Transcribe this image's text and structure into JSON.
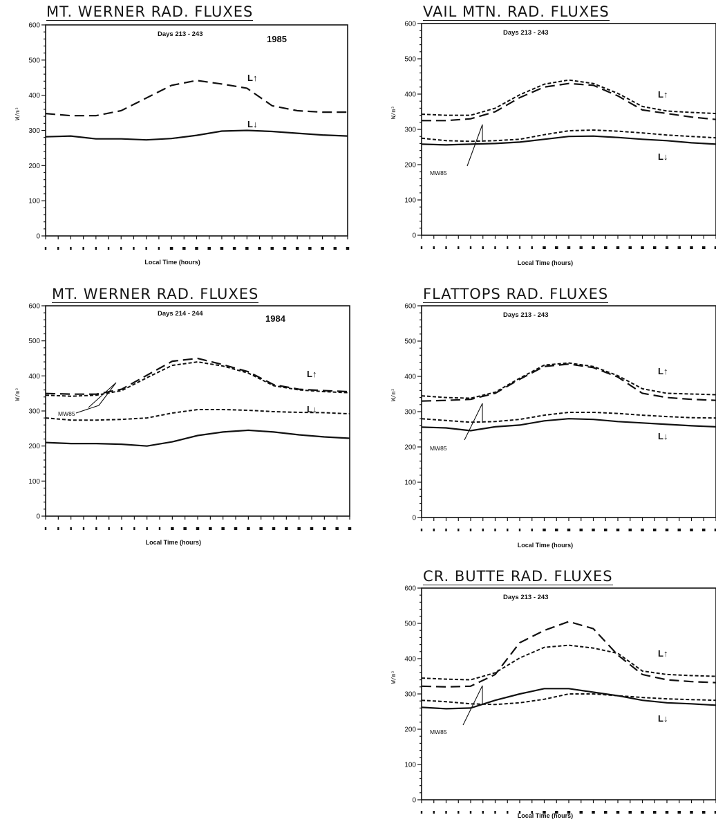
{
  "chart_data": [
    {
      "type": "line",
      "title": "MT. WERNER RAD. FLUXES",
      "days_text": "Days 213 - 243",
      "year": "1985",
      "xlabel": "Local Time (hours)",
      "ylabel": "W/m²",
      "ylim": [
        0,
        600
      ],
      "yticks": [
        "0",
        "100",
        "200",
        "300",
        "400",
        "500",
        "600"
      ],
      "x": [
        0,
        2,
        4,
        6,
        8,
        10,
        12,
        14,
        16,
        18,
        20,
        22,
        24
      ],
      "series": [
        {
          "name": "L↑",
          "values": [
            348,
            342,
            342,
            356,
            392,
            428,
            442,
            432,
            420,
            370,
            356,
            352,
            352
          ]
        },
        {
          "name": "L↓",
          "values": [
            282,
            284,
            276,
            276,
            273,
            277,
            286,
            298,
            300,
            297,
            292,
            287,
            284
          ]
        }
      ],
      "annotations": [],
      "grid": false
    },
    {
      "type": "line",
      "title": "VAIL MTN. RAD. FLUXES",
      "days_text": "Days 213 - 243",
      "xlabel": "Local Time (hours)",
      "ylabel": "W/m²",
      "ylim": [
        0,
        600
      ],
      "yticks": [
        "0",
        "100",
        "200",
        "300",
        "400",
        "500",
        "600"
      ],
      "x": [
        0,
        2,
        4,
        6,
        8,
        10,
        12,
        14,
        16,
        18,
        20,
        22,
        24
      ],
      "series": [
        {
          "name": "L↑",
          "values": [
            343,
            340,
            340,
            360,
            398,
            428,
            440,
            430,
            402,
            365,
            352,
            348,
            345
          ]
        },
        {
          "name": "MW85 L↑",
          "values": [
            325,
            325,
            330,
            350,
            390,
            420,
            430,
            425,
            395,
            355,
            345,
            335,
            328
          ]
        },
        {
          "name": "L↓",
          "values": [
            258,
            256,
            258,
            260,
            264,
            272,
            280,
            281,
            277,
            272,
            268,
            262,
            258
          ]
        },
        {
          "name": "MW85 L↓",
          "values": [
            275,
            268,
            266,
            268,
            272,
            285,
            296,
            298,
            295,
            290,
            284,
            280,
            276
          ]
        }
      ],
      "annotations": [
        "MW85"
      ],
      "grid": false
    },
    {
      "type": "line",
      "title": "MT. WERNER RAD. FLUXES",
      "days_text": "Days 214 - 244",
      "year": "1984",
      "xlabel": "Local Time (hours)",
      "ylabel": "W/m²",
      "ylim": [
        0,
        600
      ],
      "yticks": [
        "0",
        "100",
        "200",
        "300",
        "400",
        "500",
        "600"
      ],
      "x": [
        0,
        2,
        4,
        6,
        8,
        10,
        12,
        14,
        16,
        18,
        20,
        22,
        24
      ],
      "series": [
        {
          "name": "L↑",
          "values": [
            350,
            348,
            348,
            362,
            402,
            442,
            450,
            432,
            412,
            375,
            362,
            358,
            355
          ]
        },
        {
          "name": "MW85 L↑",
          "values": [
            345,
            342,
            345,
            358,
            395,
            430,
            440,
            428,
            408,
            372,
            360,
            355,
            352
          ]
        },
        {
          "name": "L↓",
          "values": [
            210,
            207,
            207,
            205,
            200,
            212,
            230,
            240,
            245,
            240,
            232,
            226,
            222
          ]
        },
        {
          "name": "MW85 L↓",
          "values": [
            280,
            274,
            274,
            276,
            280,
            294,
            304,
            304,
            302,
            298,
            296,
            295,
            292
          ]
        }
      ],
      "annotations": [
        "MW85"
      ],
      "grid": false
    },
    {
      "type": "line",
      "title": "FLATTOPS RAD. FLUXES",
      "days_text": "Days 213 - 243",
      "xlabel": "Local Time (hours)",
      "ylabel": "W/m²",
      "ylim": [
        0,
        600
      ],
      "yticks": [
        "0",
        "100",
        "200",
        "300",
        "400",
        "500",
        "600"
      ],
      "x": [
        0,
        2,
        4,
        6,
        8,
        10,
        12,
        14,
        16,
        18,
        20,
        22,
        24
      ],
      "series": [
        {
          "name": "L↑",
          "values": [
            345,
            340,
            338,
            355,
            395,
            432,
            438,
            428,
            402,
            365,
            352,
            350,
            348
          ]
        },
        {
          "name": "MW85 L↑",
          "values": [
            330,
            332,
            335,
            352,
            392,
            428,
            435,
            425,
            398,
            352,
            340,
            335,
            332
          ]
        },
        {
          "name": "L↓",
          "values": [
            256,
            254,
            246,
            257,
            262,
            274,
            280,
            278,
            272,
            268,
            264,
            260,
            257
          ]
        },
        {
          "name": "MW85 L↓",
          "values": [
            280,
            275,
            270,
            272,
            278,
            290,
            298,
            298,
            295,
            290,
            286,
            283,
            282
          ]
        }
      ],
      "annotations": [
        "MW85"
      ],
      "grid": false
    },
    {
      "type": "line",
      "title": "CR. BUTTE RAD. FLUXES",
      "days_text": "Days 213 - 243",
      "xlabel": "Local Time (hours)",
      "ylabel": "W/m²",
      "ylim": [
        0,
        600
      ],
      "yticks": [
        "0",
        "100",
        "200",
        "300",
        "400",
        "500",
        "600"
      ],
      "x": [
        0,
        2,
        4,
        6,
        8,
        10,
        12,
        14,
        16,
        18,
        20,
        22,
        24
      ],
      "series": [
        {
          "name": "L↑",
          "values": [
            345,
            342,
            340,
            360,
            402,
            432,
            438,
            430,
            415,
            365,
            355,
            352,
            350
          ]
        },
        {
          "name": "MW85 L↑",
          "values": [
            322,
            320,
            322,
            355,
            445,
            480,
            505,
            485,
            410,
            355,
            340,
            335,
            332
          ]
        },
        {
          "name": "L↓",
          "values": [
            262,
            258,
            260,
            282,
            300,
            315,
            315,
            305,
            295,
            282,
            275,
            272,
            268
          ]
        },
        {
          "name": "MW85 L↓",
          "values": [
            282,
            278,
            272,
            270,
            275,
            285,
            300,
            300,
            295,
            290,
            286,
            284,
            282
          ]
        }
      ],
      "annotations": [
        "MW85"
      ],
      "grid": false
    }
  ]
}
